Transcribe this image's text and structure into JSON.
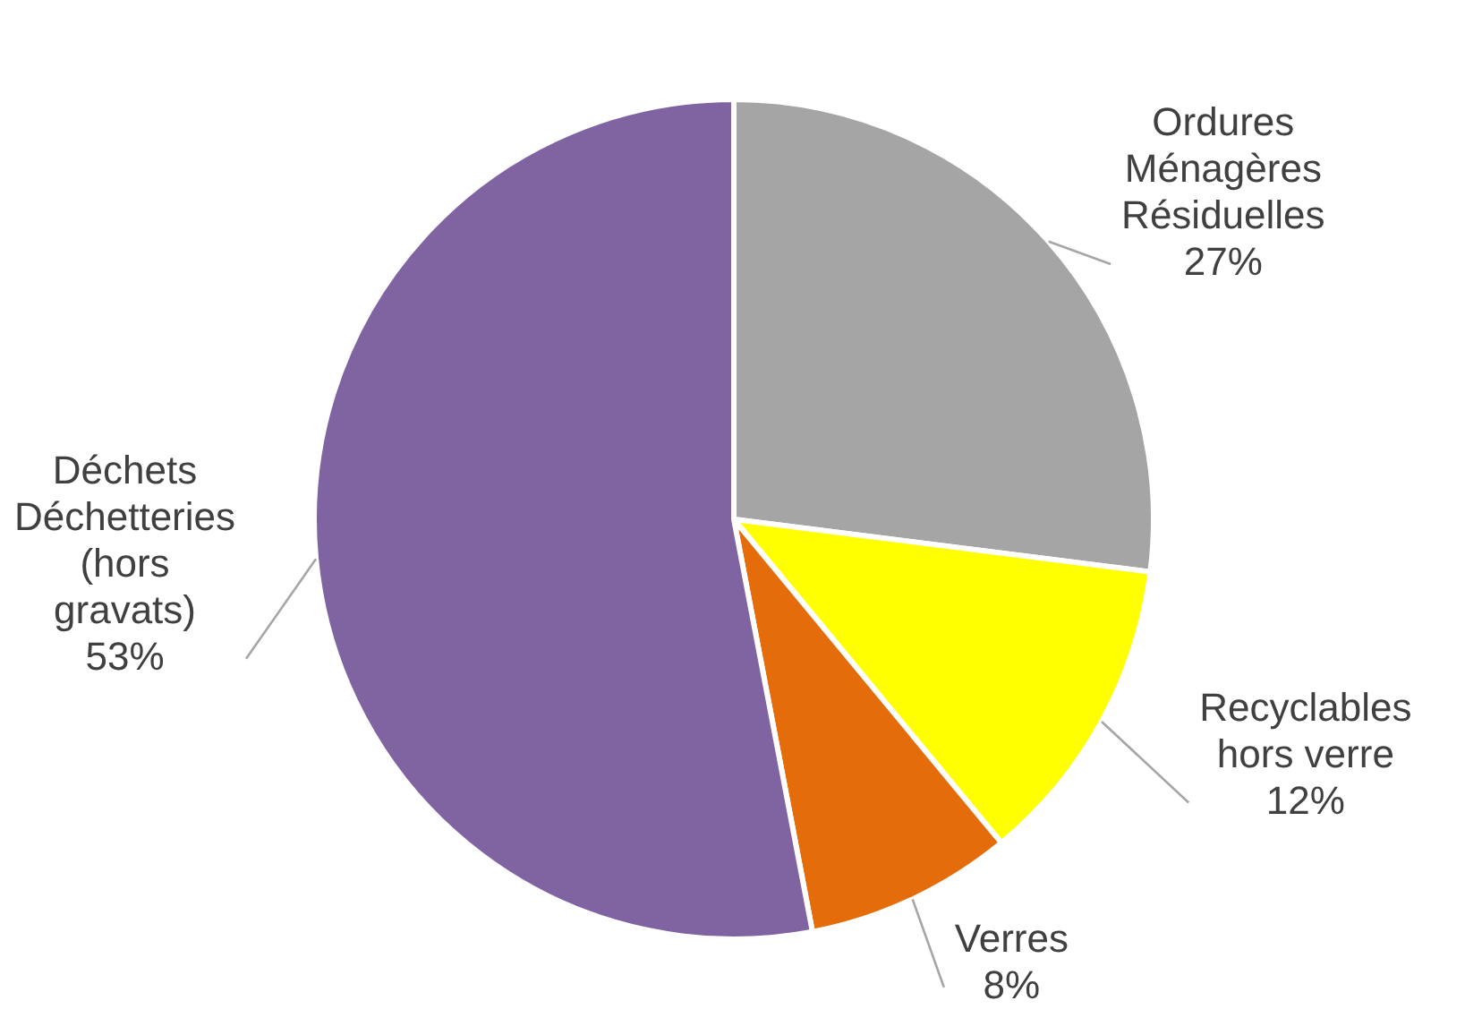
{
  "chart_data": {
    "type": "pie",
    "categories": [
      "Ordures Ménagères Résiduelles",
      "Recyclables hors verre",
      "Verres",
      "Déchets Déchetteries (hors gravats)"
    ],
    "values": [
      27,
      12,
      8,
      53
    ],
    "value_labels": [
      "27%",
      "12%",
      "8%",
      "53%"
    ],
    "colors": [
      "#a5a5a5",
      "#ffff00",
      "#e46c0a",
      "#8064a2"
    ],
    "legend": false
  }
}
